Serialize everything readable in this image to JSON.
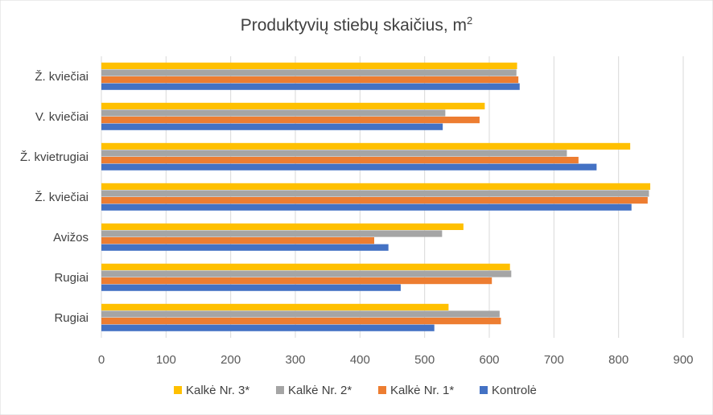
{
  "chart_data": {
    "type": "bar",
    "orientation": "horizontal",
    "title": "Produktyvių stiebų skaičius, m",
    "title_superscript": "2",
    "categories": [
      "Ž. kviečiai",
      "V. kviečiai",
      "Ž. kvietrugiai",
      "Ž. kviečiai",
      "Avižos",
      "Rugiai",
      "Rugiai"
    ],
    "series": [
      {
        "name": "Kalkė Nr. 3*",
        "color": "#FFC000",
        "values": [
          643,
          593,
          818,
          849,
          560,
          632,
          537
        ]
      },
      {
        "name": "Kalkė Nr. 2*",
        "color": "#A5A5A5",
        "values": [
          642,
          532,
          720,
          847,
          527,
          634,
          616
        ]
      },
      {
        "name": "Kalkė Nr. 1*",
        "color": "#ED7D31",
        "values": [
          645,
          585,
          738,
          845,
          422,
          604,
          618
        ]
      },
      {
        "name": "Kontrolė",
        "color": "#4472C4",
        "values": [
          647,
          528,
          766,
          820,
          444,
          463,
          515
        ]
      }
    ],
    "xlim": [
      0,
      900
    ],
    "xticks": [
      0,
      100,
      200,
      300,
      400,
      500,
      600,
      700,
      800,
      900
    ],
    "grid": true,
    "legend_position": "bottom",
    "legend_order": [
      "Kalkė Nr. 3*",
      "Kalkė Nr. 2*",
      "Kalkė Nr. 1*",
      "Kontrolė"
    ],
    "gridline_color": "#D9D9D9"
  }
}
